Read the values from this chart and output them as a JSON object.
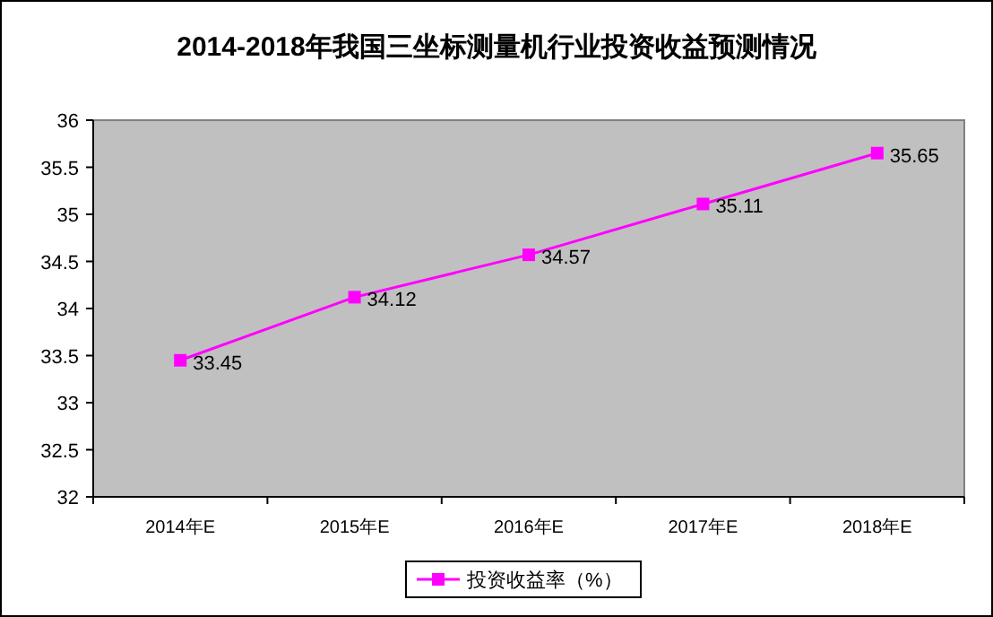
{
  "chart_data": {
    "type": "line",
    "title": "2014-2018年我国三坐标测量机行业投资收益预测情况",
    "categories": [
      "2014年E",
      "2015年E",
      "2016年E",
      "2017年E",
      "2018年E"
    ],
    "series": [
      {
        "name": "投资收益率（%）",
        "color": "#ff00ff",
        "values": [
          33.45,
          34.12,
          34.57,
          35.11,
          35.65
        ]
      }
    ],
    "ylim": [
      32,
      36
    ],
    "yticks": [
      32,
      32.5,
      33,
      33.5,
      34,
      34.5,
      35,
      35.5,
      36
    ],
    "data_labels": true,
    "legend": "bottom",
    "marker": "square",
    "line_style": "solid"
  }
}
